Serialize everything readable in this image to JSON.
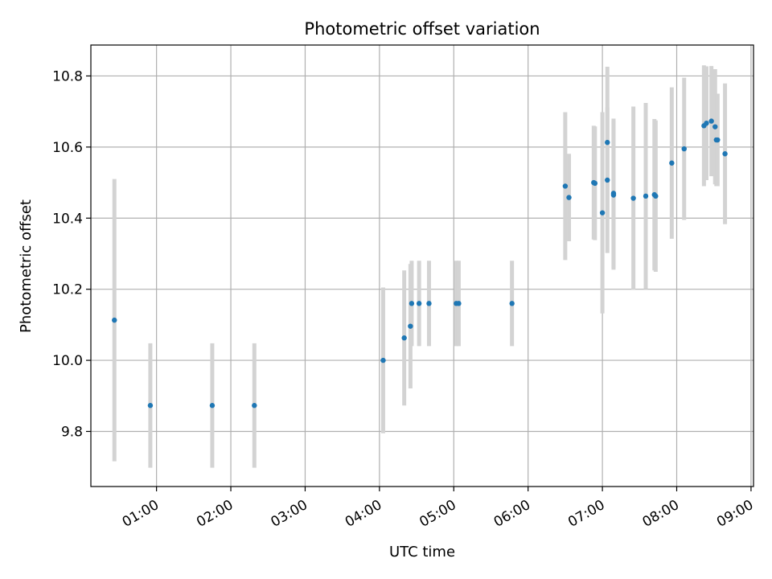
{
  "chart_data": {
    "type": "scatter",
    "title": "Photometric offset variation",
    "xlabel": "UTC time",
    "ylabel": "Photometric offset",
    "xlim": [
      "00:07",
      "09:02"
    ],
    "ylim": [
      9.645,
      10.887
    ],
    "grid": true,
    "x_ticks": [
      "01:00",
      "02:00",
      "03:00",
      "04:00",
      "05:00",
      "06:00",
      "07:00",
      "08:00",
      "09:00"
    ],
    "y_ticks": [
      9.8,
      10.0,
      10.2,
      10.4,
      10.6,
      10.8
    ],
    "colors": {
      "point": "#1f77b4",
      "errorbar": "#d3d3d3",
      "grid": "#b0b0b0"
    },
    "points": [
      {
        "x": "00:26",
        "y": 10.113,
        "err": 0.397
      },
      {
        "x": "00:55",
        "y": 9.873,
        "err": 0.175
      },
      {
        "x": "01:45",
        "y": 9.873,
        "err": 0.175
      },
      {
        "x": "02:19",
        "y": 9.873,
        "err": 0.175
      },
      {
        "x": "04:03",
        "y": 10.0,
        "err": 0.205
      },
      {
        "x": "04:20",
        "y": 10.063,
        "err": 0.19
      },
      {
        "x": "04:25",
        "y": 10.096,
        "err": 0.175
      },
      {
        "x": "04:26",
        "y": 10.16,
        "err": 0.12
      },
      {
        "x": "04:32",
        "y": 10.16,
        "err": 0.12
      },
      {
        "x": "04:40",
        "y": 10.16,
        "err": 0.12
      },
      {
        "x": "05:02",
        "y": 10.16,
        "err": 0.12
      },
      {
        "x": "05:04",
        "y": 10.16,
        "err": 0.12
      },
      {
        "x": "05:47",
        "y": 10.16,
        "err": 0.12
      },
      {
        "x": "06:30",
        "y": 10.49,
        "err": 0.208
      },
      {
        "x": "06:33",
        "y": 10.458,
        "err": 0.123
      },
      {
        "x": "06:53",
        "y": 10.5,
        "err": 0.16
      },
      {
        "x": "06:54",
        "y": 10.498,
        "err": 0.16
      },
      {
        "x": "07:00",
        "y": 10.415,
        "err": 0.283
      },
      {
        "x": "07:04",
        "y": 10.613,
        "err": 0.213
      },
      {
        "x": "07:04",
        "y": 10.507,
        "err": 0.205
      },
      {
        "x": "07:09",
        "y": 10.47,
        "err": 0.21
      },
      {
        "x": "07:09",
        "y": 10.465,
        "err": 0.21
      },
      {
        "x": "07:25",
        "y": 10.456,
        "err": 0.258
      },
      {
        "x": "07:35",
        "y": 10.462,
        "err": 0.262
      },
      {
        "x": "07:42",
        "y": 10.466,
        "err": 0.213
      },
      {
        "x": "07:43",
        "y": 10.462,
        "err": 0.213
      },
      {
        "x": "07:56",
        "y": 10.555,
        "err": 0.213
      },
      {
        "x": "08:06",
        "y": 10.595,
        "err": 0.2
      },
      {
        "x": "08:22",
        "y": 10.66,
        "err": 0.17
      },
      {
        "x": "08:24",
        "y": 10.667,
        "err": 0.16
      },
      {
        "x": "08:28",
        "y": 10.673,
        "err": 0.155
      },
      {
        "x": "08:31",
        "y": 10.657,
        "err": 0.162
      },
      {
        "x": "08:32",
        "y": 10.62,
        "err": 0.13
      },
      {
        "x": "08:33",
        "y": 10.62,
        "err": 0.13
      },
      {
        "x": "08:39",
        "y": 10.581,
        "err": 0.198
      }
    ]
  }
}
